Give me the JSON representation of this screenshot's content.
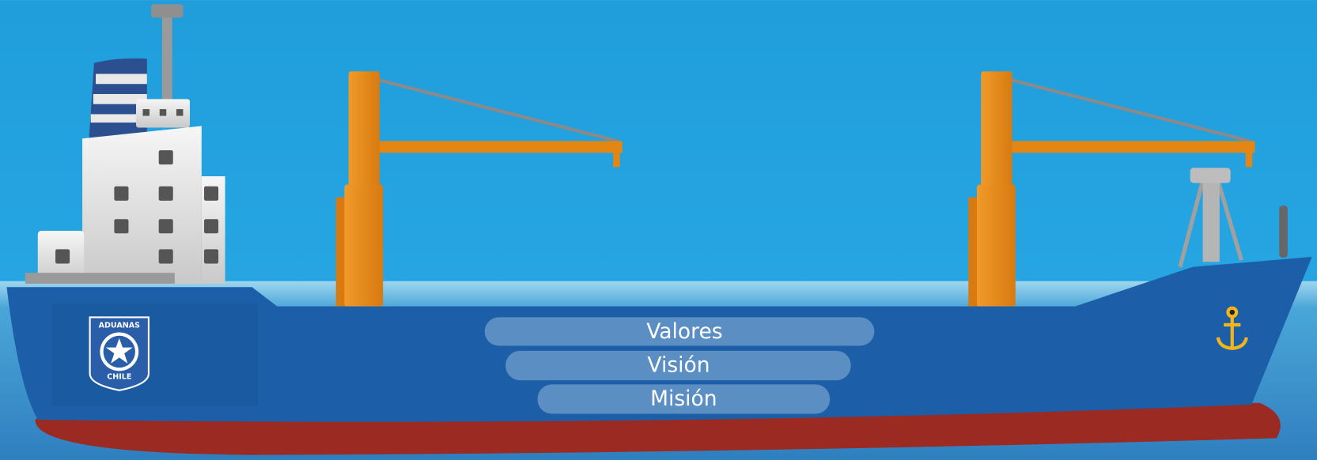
{
  "logo": {
    "top_text": "ADUANAS",
    "bottom_text": "CHILE"
  },
  "menu": {
    "items": [
      "Valores",
      "Visión",
      "Misión"
    ]
  }
}
